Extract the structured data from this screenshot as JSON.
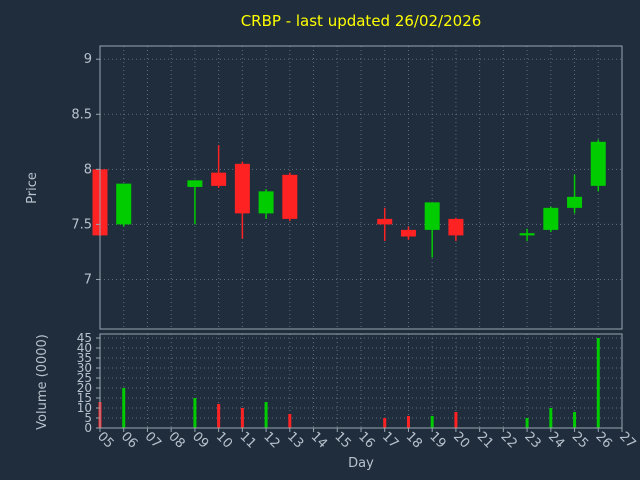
{
  "chart_data": {
    "type": "candlestick",
    "title": "CRBP - last updated 26/02/2026",
    "xlabel": "Day",
    "ylabel_price": "Price",
    "ylabel_volume": "Volume (0000)",
    "x_ticks": [
      "05",
      "06",
      "07",
      "08",
      "09",
      "10",
      "11",
      "12",
      "13",
      "14",
      "15",
      "16",
      "17",
      "18",
      "19",
      "20",
      "21",
      "22",
      "23",
      "24",
      "25",
      "26",
      "27"
    ],
    "price_ticks": [
      7,
      7.5,
      8,
      8.5,
      9
    ],
    "price_range": [
      6.55,
      9.12
    ],
    "volume_ticks": [
      0,
      5,
      10,
      15,
      20,
      25,
      30,
      35,
      40,
      45
    ],
    "volume_range": [
      0,
      47
    ],
    "legend": "none",
    "grid": "dotted",
    "colors": {
      "up": "#00cc00",
      "down": "#ff2222",
      "background": "#1f2d3d",
      "grid": "#6b7b8d",
      "text": "#b8c2cc",
      "title": "#ffff00",
      "border": "#9aa5b1"
    },
    "candles": [
      {
        "day": 5,
        "open": 8.0,
        "high": 8.0,
        "low": 7.4,
        "close": 7.4,
        "volume": 13
      },
      {
        "day": 6,
        "open": 7.5,
        "high": 7.87,
        "low": 7.48,
        "close": 7.87,
        "volume": 20
      },
      {
        "day": 9,
        "open": 7.84,
        "high": 7.9,
        "low": 7.5,
        "close": 7.9,
        "volume": 15
      },
      {
        "day": 10,
        "open": 7.97,
        "high": 8.22,
        "low": 7.83,
        "close": 7.85,
        "volume": 12
      },
      {
        "day": 11,
        "open": 8.05,
        "high": 8.07,
        "low": 7.37,
        "close": 7.6,
        "volume": 10
      },
      {
        "day": 12,
        "open": 7.6,
        "high": 7.82,
        "low": 7.55,
        "close": 7.8,
        "volume": 13
      },
      {
        "day": 13,
        "open": 7.95,
        "high": 7.97,
        "low": 7.53,
        "close": 7.55,
        "volume": 7
      },
      {
        "day": 17,
        "open": 7.55,
        "high": 7.65,
        "low": 7.35,
        "close": 7.5,
        "volume": 5
      },
      {
        "day": 18,
        "open": 7.45,
        "high": 7.48,
        "low": 7.36,
        "close": 7.39,
        "volume": 6
      },
      {
        "day": 19,
        "open": 7.45,
        "high": 7.7,
        "low": 7.2,
        "close": 7.7,
        "volume": 6
      },
      {
        "day": 20,
        "open": 7.55,
        "high": 7.56,
        "low": 7.35,
        "close": 7.4,
        "volume": 8
      },
      {
        "day": 23,
        "open": 7.4,
        "high": 7.46,
        "low": 7.35,
        "close": 7.42,
        "volume": 5
      },
      {
        "day": 24,
        "open": 7.45,
        "high": 7.66,
        "low": 7.43,
        "close": 7.65,
        "volume": 10
      },
      {
        "day": 25,
        "open": 7.65,
        "high": 7.95,
        "low": 7.6,
        "close": 7.75,
        "volume": 8
      },
      {
        "day": 26,
        "open": 7.85,
        "high": 8.27,
        "low": 7.8,
        "close": 8.25,
        "volume": 45
      }
    ]
  }
}
